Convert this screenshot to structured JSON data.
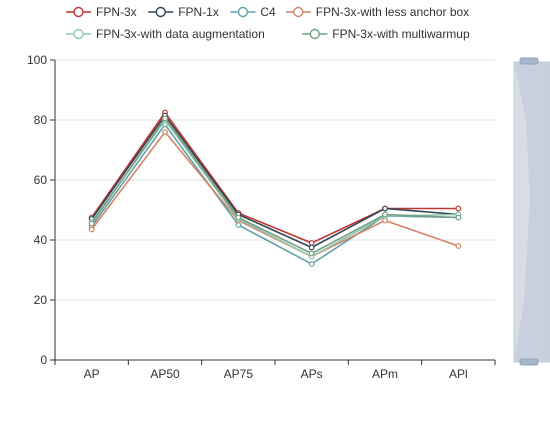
{
  "chart_data": {
    "type": "line",
    "title": "",
    "xlabel": "",
    "ylabel": "",
    "categories": [
      "AP",
      "AP50",
      "AP75",
      "APs",
      "APm",
      "APl"
    ],
    "ylim": [
      0,
      100
    ],
    "yticks": [
      0,
      20,
      40,
      60,
      80,
      100
    ],
    "grid": true,
    "legend_position": "top",
    "series": [
      {
        "name": "FPN-3x",
        "color": "#c23531",
        "values": [
          47.5,
          82.5,
          49.0,
          39.0,
          50.5,
          50.5
        ]
      },
      {
        "name": "FPN-1x",
        "color": "#2f4554",
        "values": [
          47.0,
          81.5,
          48.5,
          37.5,
          50.5,
          48.5
        ]
      },
      {
        "name": "C4",
        "color": "#61a0a8",
        "values": [
          44.5,
          78.5,
          45.0,
          32.0,
          48.0,
          47.5
        ]
      },
      {
        "name": "FPN-3x-with less anchor box",
        "color": "#d48265",
        "values": [
          43.5,
          76.0,
          46.5,
          34.5,
          46.5,
          38.0
        ]
      },
      {
        "name": "FPN-3x-with data augmentation",
        "color": "#91c7ae",
        "values": [
          46.0,
          80.0,
          47.0,
          34.5,
          48.0,
          48.5
        ]
      },
      {
        "name": "FPN-3x-with multiwarmup",
        "color": "#749f83",
        "values": [
          45.5,
          80.5,
          47.5,
          35.5,
          48.5,
          47.5
        ]
      }
    ],
    "datazoom": {
      "orientation": "vertical",
      "range_percent": [
        0,
        100
      ]
    }
  }
}
